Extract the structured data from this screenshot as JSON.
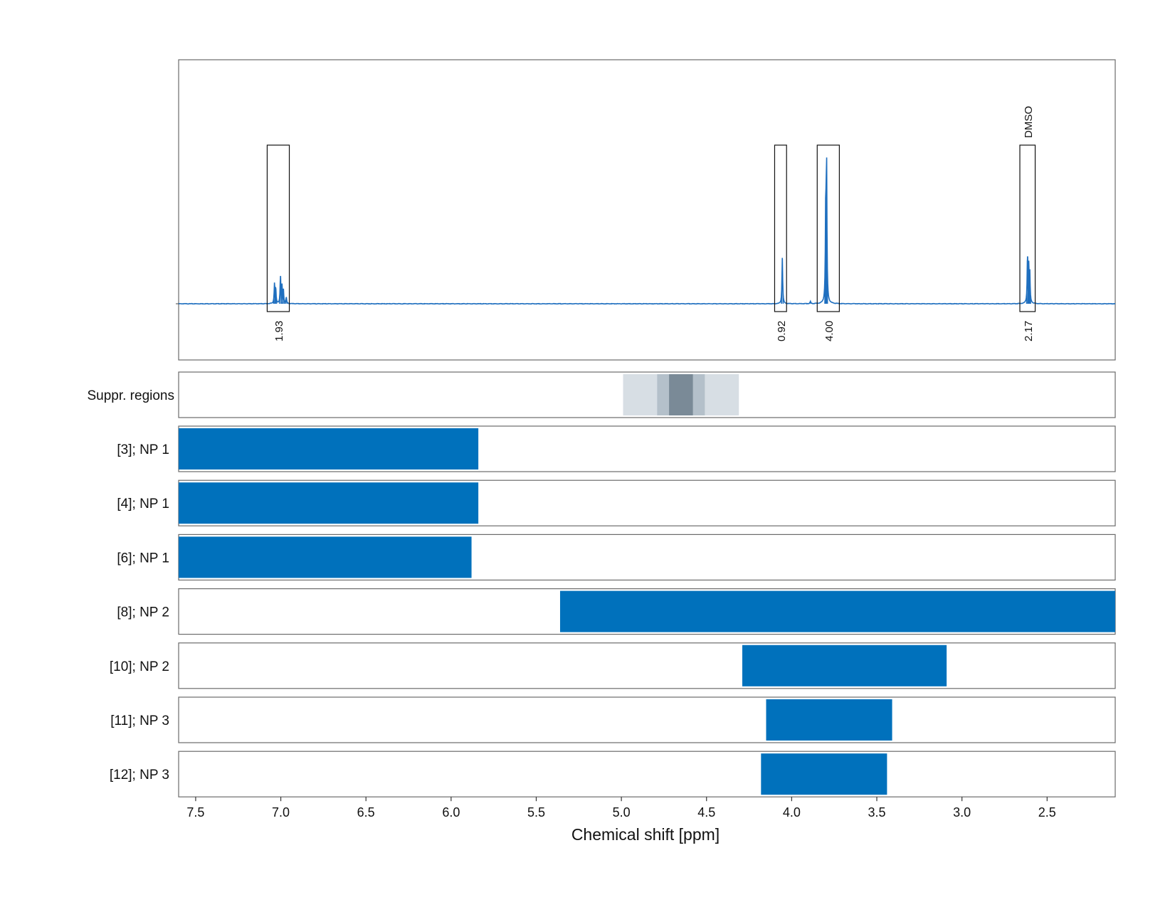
{
  "chart_data": {
    "type": "nmr-spectrum-with-ranges",
    "xlabel": "Chemical shift [ppm]",
    "xlim": [
      7.6,
      2.1
    ],
    "x_reversed": true,
    "xticks": [
      7.5,
      7.0,
      6.5,
      6.0,
      5.5,
      5.0,
      4.5,
      4.0,
      3.5,
      3.0,
      2.5
    ],
    "xtick_labels": [
      "7.5",
      "7.0",
      "6.5",
      "6.0",
      "5.5",
      "5.0",
      "4.5",
      "4.0",
      "3.5",
      "3.0",
      "2.5"
    ],
    "grid": "vertical dashed",
    "colors": {
      "spectrum": "#1f6fbf",
      "bars": "#0071bc",
      "integral_labels": "#e8222a",
      "suppr_light": "#d7dee4",
      "suppr_mid": "#b4c0ca",
      "suppr_dark": "#7a8a97"
    },
    "spectrum": {
      "peaks": [
        {
          "shift": 7.037,
          "height": 0.13
        },
        {
          "shift": 7.03,
          "height": 0.1
        },
        {
          "shift": 7.002,
          "height": 0.18
        },
        {
          "shift": 6.993,
          "height": 0.11
        },
        {
          "shift": 6.985,
          "height": 0.09
        },
        {
          "shift": 6.968,
          "height": 0.04
        },
        {
          "shift": 4.055,
          "height": 0.3
        },
        {
          "shift": 3.89,
          "height": 0.015
        },
        {
          "shift": 3.795,
          "height": 0.9
        },
        {
          "shift": 3.8,
          "height": 0.6
        },
        {
          "shift": 2.615,
          "height": 0.31
        },
        {
          "shift": 2.608,
          "height": 0.22
        },
        {
          "shift": 2.602,
          "height": 0.2
        }
      ],
      "integration_regions": [
        {
          "from": 7.08,
          "to": 6.95,
          "label": "1.93",
          "annotation": ""
        },
        {
          "from": 4.1,
          "to": 4.03,
          "label": "0.92",
          "annotation": ""
        },
        {
          "from": 3.85,
          "to": 3.72,
          "label": "4.00",
          "annotation": ""
        },
        {
          "from": 2.66,
          "to": 2.57,
          "label": "2.17",
          "annotation": "DMSO"
        }
      ]
    },
    "suppressed_regions": {
      "label": "Suppr. regions",
      "bands": [
        {
          "from": 4.99,
          "to": 4.31,
          "level": "light"
        },
        {
          "from": 4.79,
          "to": 4.51,
          "level": "mid"
        },
        {
          "from": 4.72,
          "to": 4.58,
          "level": "dark"
        }
      ]
    },
    "ranges": [
      {
        "label": "[3]; NP 1",
        "from": 7.6,
        "to": 5.84
      },
      {
        "label": "[4]; NP 1",
        "from": 7.6,
        "to": 5.84
      },
      {
        "label": "[6]; NP 1",
        "from": 7.6,
        "to": 5.88
      },
      {
        "label": "[8]; NP 2",
        "from": 5.36,
        "to": 2.1
      },
      {
        "label": "[10]; NP 2",
        "from": 4.29,
        "to": 3.09
      },
      {
        "label": "[11]; NP 3",
        "from": 4.15,
        "to": 3.41
      },
      {
        "label": "[12]; NP 3",
        "from": 4.18,
        "to": 3.44
      }
    ]
  }
}
